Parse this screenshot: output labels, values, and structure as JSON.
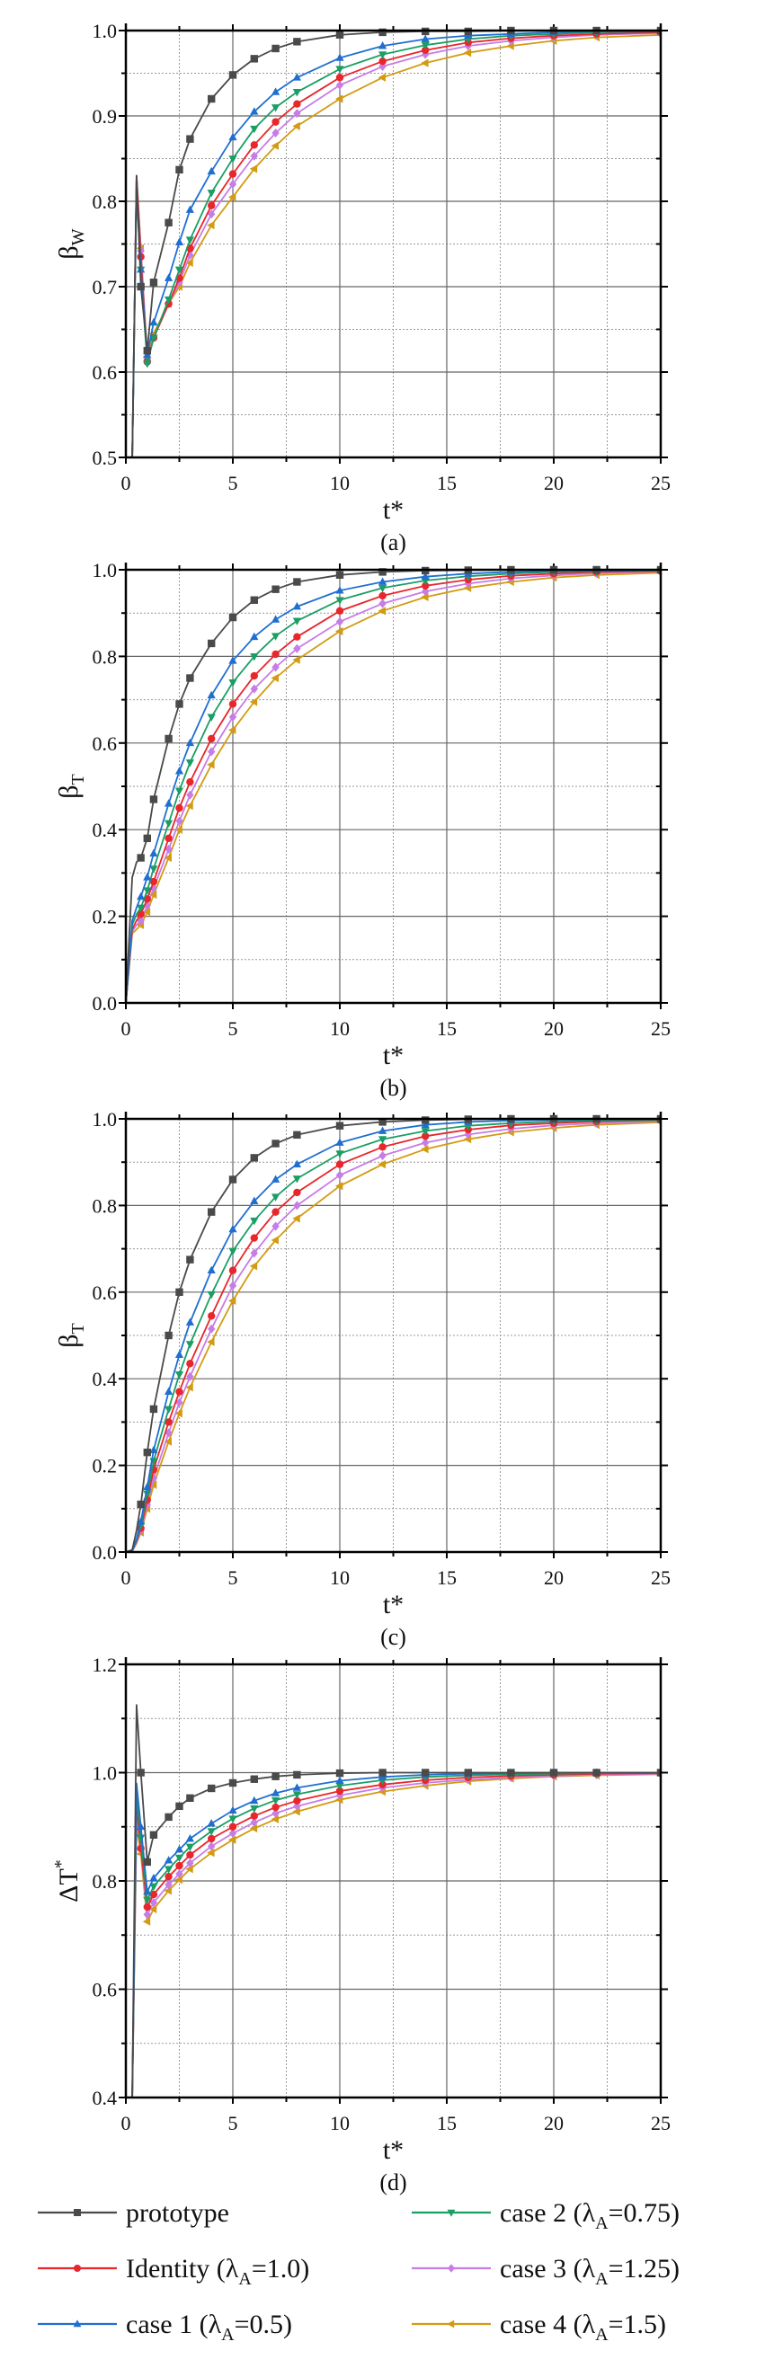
{
  "chart_data": [
    {
      "type": "line",
      "caption": "(a)",
      "xlabel": "t*",
      "ylabel": {
        "base": "β",
        "sub": "W",
        "sup": ""
      },
      "xlim": [
        0,
        25
      ],
      "ylim": [
        0.5,
        1.0
      ],
      "xticks": [
        "0",
        "5",
        "10",
        "15",
        "20",
        "25"
      ],
      "yticks": [
        "0.5",
        "0.6",
        "0.7",
        "0.8",
        "0.9",
        "1.0"
      ],
      "x_major": 5,
      "x_minor": 2.5,
      "y_major": 0.1,
      "y_minor": 0.05,
      "grid": true,
      "x": [
        0.3,
        0.5,
        0.7,
        1.0,
        1.3,
        2,
        2.5,
        3,
        4,
        5,
        6,
        7,
        8,
        10,
        12,
        14,
        16,
        18,
        20,
        22,
        25
      ],
      "series": [
        {
          "key": "prototype",
          "values": [
            0.5,
            0.83,
            0.7,
            0.625,
            0.705,
            0.775,
            0.837,
            0.873,
            0.92,
            0.948,
            0.967,
            0.979,
            0.987,
            0.995,
            0.998,
            0.999,
            0.999,
            1.0,
            1.0,
            1.0,
            1.0
          ]
        },
        {
          "key": "identity",
          "values": [
            0.5,
            0.83,
            0.735,
            0.612,
            0.64,
            0.68,
            0.71,
            0.745,
            0.795,
            0.832,
            0.866,
            0.893,
            0.914,
            0.945,
            0.964,
            0.977,
            0.986,
            0.991,
            0.994,
            0.996,
            0.998
          ]
        },
        {
          "key": "case1",
          "values": [
            0.5,
            0.82,
            0.72,
            0.62,
            0.658,
            0.71,
            0.752,
            0.79,
            0.835,
            0.875,
            0.905,
            0.928,
            0.945,
            0.968,
            0.982,
            0.99,
            0.994,
            0.996,
            0.998,
            0.999,
            0.999
          ]
        },
        {
          "key": "case2",
          "values": [
            0.5,
            0.81,
            0.72,
            0.61,
            0.64,
            0.685,
            0.72,
            0.755,
            0.81,
            0.85,
            0.885,
            0.91,
            0.928,
            0.955,
            0.972,
            0.983,
            0.99,
            0.994,
            0.996,
            0.998,
            0.999
          ]
        },
        {
          "key": "case3",
          "values": [
            0.5,
            0.83,
            0.742,
            0.615,
            0.64,
            0.68,
            0.705,
            0.737,
            0.785,
            0.82,
            0.853,
            0.88,
            0.903,
            0.936,
            0.958,
            0.972,
            0.982,
            0.988,
            0.992,
            0.995,
            0.997
          ]
        },
        {
          "key": "case4",
          "values": [
            0.5,
            0.83,
            0.745,
            0.618,
            0.645,
            0.68,
            0.7,
            0.728,
            0.772,
            0.805,
            0.838,
            0.865,
            0.888,
            0.92,
            0.945,
            0.962,
            0.974,
            0.982,
            0.988,
            0.992,
            0.995
          ]
        }
      ]
    },
    {
      "type": "line",
      "caption": "(b)",
      "xlabel": "t*",
      "ylabel": {
        "base": "β",
        "sub": "T",
        "sup": ""
      },
      "xlim": [
        0,
        25
      ],
      "ylim": [
        0.0,
        1.0
      ],
      "xticks": [
        "0",
        "5",
        "10",
        "15",
        "20",
        "25"
      ],
      "yticks": [
        "0.0",
        "0.2",
        "0.4",
        "0.6",
        "0.8",
        "1.0"
      ],
      "x_major": 5,
      "x_minor": 2.5,
      "y_major": 0.2,
      "y_minor": 0.1,
      "grid": true,
      "x": [
        0,
        0.3,
        0.5,
        0.7,
        1.0,
        1.3,
        2,
        2.5,
        3,
        4,
        5,
        6,
        7,
        8,
        10,
        12,
        14,
        16,
        18,
        20,
        22,
        25
      ],
      "series": [
        {
          "key": "prototype",
          "values": [
            0,
            0.29,
            0.325,
            0.335,
            0.38,
            0.47,
            0.61,
            0.69,
            0.75,
            0.83,
            0.89,
            0.93,
            0.955,
            0.972,
            0.988,
            0.995,
            0.998,
            0.999,
            1,
            1,
            1,
            1
          ]
        },
        {
          "key": "identity",
          "values": [
            0,
            0.17,
            0.19,
            0.205,
            0.24,
            0.28,
            0.38,
            0.45,
            0.51,
            0.61,
            0.69,
            0.755,
            0.805,
            0.845,
            0.905,
            0.94,
            0.963,
            0.977,
            0.986,
            0.991,
            0.995,
            0.997
          ]
        },
        {
          "key": "case1",
          "values": [
            0,
            0.19,
            0.22,
            0.245,
            0.29,
            0.345,
            0.46,
            0.535,
            0.6,
            0.71,
            0.79,
            0.845,
            0.885,
            0.915,
            0.952,
            0.972,
            0.984,
            0.991,
            0.995,
            0.997,
            0.998,
            0.999
          ]
        },
        {
          "key": "case2",
          "values": [
            0,
            0.18,
            0.205,
            0.22,
            0.26,
            0.31,
            0.415,
            0.49,
            0.555,
            0.66,
            0.74,
            0.8,
            0.847,
            0.882,
            0.93,
            0.958,
            0.975,
            0.985,
            0.991,
            0.995,
            0.997,
            0.998
          ]
        },
        {
          "key": "case3",
          "values": [
            0,
            0.165,
            0.18,
            0.19,
            0.225,
            0.265,
            0.355,
            0.42,
            0.48,
            0.58,
            0.66,
            0.725,
            0.775,
            0.818,
            0.88,
            0.922,
            0.95,
            0.968,
            0.98,
            0.987,
            0.992,
            0.996
          ]
        },
        {
          "key": "case4",
          "values": [
            0,
            0.16,
            0.17,
            0.18,
            0.21,
            0.25,
            0.335,
            0.4,
            0.455,
            0.55,
            0.63,
            0.695,
            0.75,
            0.792,
            0.858,
            0.905,
            0.937,
            0.958,
            0.972,
            0.982,
            0.988,
            0.993
          ]
        }
      ]
    },
    {
      "type": "line",
      "caption": "(c)",
      "xlabel": "t*",
      "ylabel": {
        "base": "β",
        "sub": "T",
        "sup": ""
      },
      "xlim": [
        0,
        25
      ],
      "ylim": [
        0.0,
        1.0
      ],
      "xticks": [
        "0",
        "5",
        "10",
        "15",
        "20",
        "25"
      ],
      "yticks": [
        "0.0",
        "0.2",
        "0.4",
        "0.6",
        "0.8",
        "1.0"
      ],
      "x_major": 5,
      "x_minor": 2.5,
      "y_major": 0.2,
      "y_minor": 0.1,
      "grid": true,
      "x": [
        0,
        0.3,
        0.5,
        0.7,
        1.0,
        1.3,
        2,
        2.5,
        3,
        4,
        5,
        6,
        7,
        8,
        10,
        12,
        14,
        16,
        18,
        20,
        22,
        25
      ],
      "series": [
        {
          "key": "prototype",
          "values": [
            0,
            0.005,
            0.05,
            0.11,
            0.23,
            0.33,
            0.5,
            0.6,
            0.675,
            0.785,
            0.86,
            0.91,
            0.943,
            0.963,
            0.984,
            0.993,
            0.997,
            0.999,
            1,
            1,
            1,
            1
          ]
        },
        {
          "key": "identity",
          "values": [
            0,
            0.003,
            0.025,
            0.055,
            0.12,
            0.19,
            0.3,
            0.37,
            0.435,
            0.545,
            0.65,
            0.725,
            0.785,
            0.83,
            0.895,
            0.935,
            0.96,
            0.975,
            0.985,
            0.99,
            0.994,
            0.997
          ]
        },
        {
          "key": "case1",
          "values": [
            0,
            0.003,
            0.03,
            0.07,
            0.15,
            0.235,
            0.37,
            0.455,
            0.53,
            0.65,
            0.745,
            0.81,
            0.86,
            0.895,
            0.945,
            0.972,
            0.986,
            0.993,
            0.996,
            0.998,
            0.999,
            1
          ]
        },
        {
          "key": "case2",
          "values": [
            0,
            0.003,
            0.027,
            0.062,
            0.135,
            0.21,
            0.33,
            0.41,
            0.48,
            0.595,
            0.695,
            0.765,
            0.82,
            0.862,
            0.92,
            0.953,
            0.972,
            0.984,
            0.99,
            0.994,
            0.996,
            0.998
          ]
        },
        {
          "key": "case3",
          "values": [
            0,
            0.002,
            0.022,
            0.05,
            0.11,
            0.17,
            0.275,
            0.345,
            0.405,
            0.515,
            0.615,
            0.69,
            0.752,
            0.8,
            0.87,
            0.915,
            0.945,
            0.964,
            0.977,
            0.985,
            0.99,
            0.995
          ]
        },
        {
          "key": "case4",
          "values": [
            0,
            0.002,
            0.02,
            0.045,
            0.1,
            0.155,
            0.255,
            0.32,
            0.38,
            0.485,
            0.58,
            0.66,
            0.72,
            0.77,
            0.845,
            0.895,
            0.93,
            0.953,
            0.969,
            0.979,
            0.986,
            0.992
          ]
        }
      ]
    },
    {
      "type": "line",
      "caption": "(d)",
      "xlabel": "t*",
      "ylabel": {
        "base": "ΔT",
        "sub": "",
        "sup": "*"
      },
      "xlim": [
        0,
        25
      ],
      "ylim": [
        0.4,
        1.2
      ],
      "xticks": [
        "0",
        "5",
        "10",
        "15",
        "20",
        "25"
      ],
      "yticks": [
        "0.4",
        "0.6",
        "0.8",
        "1.0",
        "1.2"
      ],
      "x_major": 5,
      "x_minor": 2.5,
      "y_major": 0.2,
      "y_minor": 0.1,
      "grid": true,
      "x": [
        0.3,
        0.5,
        0.7,
        1.0,
        1.3,
        2,
        2.5,
        3,
        4,
        5,
        6,
        7,
        8,
        10,
        12,
        14,
        16,
        18,
        20,
        22,
        25
      ],
      "series": [
        {
          "key": "prototype",
          "values": [
            0.4,
            1.125,
            1.0,
            0.835,
            0.885,
            0.918,
            0.938,
            0.953,
            0.971,
            0.981,
            0.988,
            0.993,
            0.996,
            0.999,
            1.0,
            1.0,
            1.0,
            1.0,
            1.0,
            1.0,
            1.0
          ]
        },
        {
          "key": "identity",
          "values": [
            0.4,
            0.94,
            0.86,
            0.752,
            0.775,
            0.808,
            0.828,
            0.848,
            0.878,
            0.9,
            0.92,
            0.936,
            0.948,
            0.966,
            0.978,
            0.986,
            0.991,
            0.994,
            0.996,
            0.998,
            0.999
          ]
        },
        {
          "key": "case1",
          "values": [
            0.4,
            0.98,
            0.9,
            0.78,
            0.805,
            0.838,
            0.858,
            0.878,
            0.906,
            0.93,
            0.948,
            0.962,
            0.972,
            0.985,
            0.992,
            0.996,
            0.998,
            0.999,
            1.0,
            1.0,
            1.0
          ]
        },
        {
          "key": "case2",
          "values": [
            0.4,
            0.96,
            0.88,
            0.765,
            0.79,
            0.822,
            0.843,
            0.863,
            0.892,
            0.915,
            0.934,
            0.949,
            0.96,
            0.976,
            0.986,
            0.992,
            0.995,
            0.997,
            0.998,
            0.999,
            1.0
          ]
        },
        {
          "key": "case3",
          "values": [
            0.4,
            0.92,
            0.86,
            0.738,
            0.76,
            0.793,
            0.813,
            0.833,
            0.864,
            0.888,
            0.908,
            0.925,
            0.938,
            0.958,
            0.972,
            0.981,
            0.987,
            0.991,
            0.994,
            0.996,
            0.998
          ]
        },
        {
          "key": "case4",
          "values": [
            0.4,
            0.9,
            0.85,
            0.725,
            0.748,
            0.782,
            0.802,
            0.822,
            0.852,
            0.876,
            0.897,
            0.914,
            0.928,
            0.95,
            0.965,
            0.976,
            0.984,
            0.989,
            0.993,
            0.995,
            0.997
          ]
        }
      ]
    }
  ],
  "legend": {
    "placement": "bottom",
    "entries": [
      {
        "key": "prototype",
        "pre": "prototype",
        "sub": "",
        "post": "",
        "color": "#4a4a4a",
        "marker": "square"
      },
      {
        "key": "case2",
        "pre": "case 2 (λ",
        "sub": "A",
        "post": "=0.75)",
        "color": "#1a9e64",
        "marker": "triangle-down"
      },
      {
        "key": "identity",
        "pre": "Identity (λ",
        "sub": "A",
        "post": "=1.0)",
        "color": "#e8262b",
        "marker": "circle"
      },
      {
        "key": "case3",
        "pre": "case 3 (λ",
        "sub": "A",
        "post": "=1.25)",
        "color": "#c77ce6",
        "marker": "diamond"
      },
      {
        "key": "case1",
        "pre": "case 1 (λ",
        "sub": "A",
        "post": "=0.5)",
        "color": "#1f6fd1",
        "marker": "triangle-up"
      },
      {
        "key": "case4",
        "pre": "case 4 (λ",
        "sub": "A",
        "post": "=1.5)",
        "color": "#d49b12",
        "marker": "triangle-left"
      }
    ]
  }
}
